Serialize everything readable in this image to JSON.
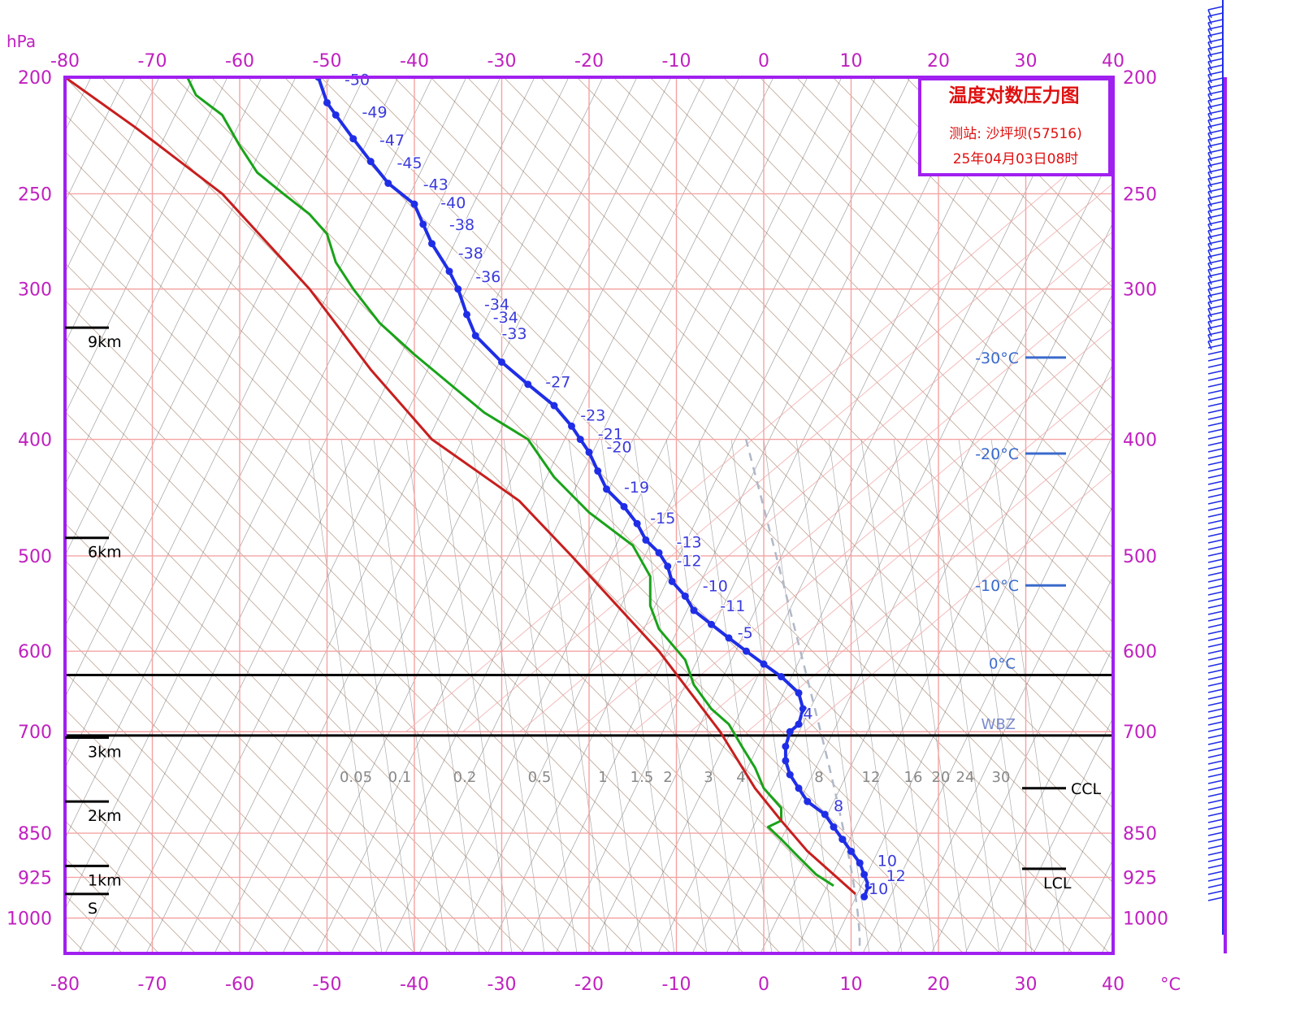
{
  "chart_data": {
    "type": "line",
    "title": "温度对数压力图",
    "station_line": "测站: 沙坪坝(57516)",
    "time_line": "25年04月03日08时",
    "pressure_unit": "hPa",
    "temp_unit": "°C",
    "pressure_levels": [
      200,
      250,
      300,
      400,
      500,
      600,
      700,
      850,
      925,
      1000
    ],
    "temp_ticks": [
      -80,
      -70,
      -60,
      -50,
      -40,
      -30,
      -20,
      -10,
      0,
      10,
      20,
      30,
      40
    ],
    "xlim": [
      -80,
      40
    ],
    "ylim": [
      1070,
      200
    ],
    "yscale": "log",
    "grid": true,
    "height_marks": [
      {
        "label": "9km",
        "p": 323
      },
      {
        "label": "6km",
        "p": 483
      },
      {
        "label": "3km",
        "p": 708
      },
      {
        "label": "2km",
        "p": 800
      },
      {
        "label": "1km",
        "p": 905
      },
      {
        "label": "S",
        "p": 955
      }
    ],
    "isotherm_markers": [
      {
        "label": "-30°C",
        "p": 342
      },
      {
        "label": "-20°C",
        "p": 411
      },
      {
        "label": "-10°C",
        "p": 529
      }
    ],
    "levels": [
      {
        "label": "0°C",
        "p": 628
      },
      {
        "label": "WBZ",
        "p": 705
      }
    ],
    "condensation_marks": [
      {
        "label": "CCL",
        "p": 780
      },
      {
        "label": "LCL",
        "p": 910
      }
    ],
    "mixing_ratio_labels": [
      "0.05",
      "0.1",
      "0.2",
      "0.5",
      "1",
      "1.5",
      "2",
      "3",
      "4",
      "8",
      "12",
      "16",
      "20",
      "24",
      "30"
    ],
    "series": [
      {
        "name": "temperature",
        "color": "#1f2ee6",
        "points": [
          [
            11.5,
            960
          ],
          [
            12,
            940
          ],
          [
            11.5,
            920
          ],
          [
            11,
            900
          ],
          [
            10,
            880
          ],
          [
            9,
            860
          ],
          [
            8,
            840
          ],
          [
            7,
            820
          ],
          [
            5,
            800
          ],
          [
            4,
            780
          ],
          [
            3,
            760
          ],
          [
            2.5,
            740
          ],
          [
            2.5,
            720
          ],
          [
            3,
            700
          ],
          [
            4,
            690
          ],
          [
            4.5,
            670
          ],
          [
            4,
            650
          ],
          [
            2,
            630
          ],
          [
            0,
            615
          ],
          [
            -2,
            600
          ],
          [
            -4,
            585
          ],
          [
            -6,
            570
          ],
          [
            -8,
            555
          ],
          [
            -9,
            540
          ],
          [
            -10.5,
            525
          ],
          [
            -11,
            510
          ],
          [
            -12,
            497
          ],
          [
            -13.5,
            485
          ],
          [
            -14.5,
            470
          ],
          [
            -16,
            455
          ],
          [
            -18,
            440
          ],
          [
            -19,
            425
          ],
          [
            -20,
            410
          ],
          [
            -21,
            400
          ],
          [
            -22,
            390
          ],
          [
            -24,
            375
          ],
          [
            -27,
            360
          ],
          [
            -30,
            345
          ],
          [
            -33,
            328
          ],
          [
            -34,
            315
          ],
          [
            -35,
            300
          ],
          [
            -36,
            290
          ],
          [
            -38,
            275
          ],
          [
            -39,
            265
          ],
          [
            -40,
            255
          ],
          [
            -43,
            245
          ],
          [
            -45,
            235
          ],
          [
            -47,
            225
          ],
          [
            -49,
            215
          ],
          [
            -50,
            210
          ],
          [
            -51,
            200
          ]
        ]
      },
      {
        "name": "dewpoint",
        "color": "#19a319",
        "points": [
          [
            8,
            940
          ],
          [
            6,
            920
          ],
          [
            4,
            890
          ],
          [
            2,
            860
          ],
          [
            0.5,
            840
          ],
          [
            2,
            830
          ],
          [
            2,
            810
          ],
          [
            0,
            780
          ],
          [
            -1,
            750
          ],
          [
            -2.5,
            720
          ],
          [
            -4,
            690
          ],
          [
            -6,
            670
          ],
          [
            -8,
            640
          ],
          [
            -9,
            610
          ],
          [
            -12,
            575
          ],
          [
            -13,
            550
          ],
          [
            -13,
            520
          ],
          [
            -15,
            490
          ],
          [
            -20,
            460
          ],
          [
            -24,
            430
          ],
          [
            -27,
            400
          ],
          [
            -32,
            380
          ],
          [
            -40,
            340
          ],
          [
            -44,
            320
          ],
          [
            -47,
            300
          ],
          [
            -49,
            285
          ],
          [
            -50,
            270
          ],
          [
            -52,
            260
          ],
          [
            -55,
            250
          ],
          [
            -58,
            240
          ],
          [
            -60,
            228
          ],
          [
            -62,
            215
          ],
          [
            -65,
            207
          ],
          [
            -66,
            200
          ]
        ]
      },
      {
        "name": "state_curve",
        "color": "#c81e1e",
        "points": [
          [
            10.5,
            955
          ],
          [
            8,
            920
          ],
          [
            5,
            880
          ],
          [
            2,
            830
          ],
          [
            -1,
            780
          ],
          [
            -5,
            700
          ],
          [
            -12,
            600
          ],
          [
            -22,
            500
          ],
          [
            -28,
            450
          ],
          [
            -38,
            400
          ],
          [
            -45,
            350
          ],
          [
            -52,
            300
          ],
          [
            -62,
            250
          ],
          [
            -72,
            220
          ],
          [
            -80,
            200
          ]
        ]
      }
    ],
    "temperature_labels": [
      {
        "text": "-50",
        "p": 203,
        "t": -48
      },
      {
        "text": "-49",
        "p": 216,
        "t": -46
      },
      {
        "text": "-47",
        "p": 228,
        "t": -44
      },
      {
        "text": "-45",
        "p": 238,
        "t": -42
      },
      {
        "text": "-43",
        "p": 248,
        "t": -39
      },
      {
        "text": "-40",
        "p": 257,
        "t": -37
      },
      {
        "text": "-38",
        "p": 268,
        "t": -36
      },
      {
        "text": "-38",
        "p": 283,
        "t": -35
      },
      {
        "text": "-36",
        "p": 296,
        "t": -33
      },
      {
        "text": "-34",
        "p": 312,
        "t": -32
      },
      {
        "text": "-34",
        "p": 320,
        "t": -31
      },
      {
        "text": "-33",
        "p": 330,
        "t": -30
      },
      {
        "text": "-27",
        "p": 362,
        "t": -25
      },
      {
        "text": "-23",
        "p": 386,
        "t": -21
      },
      {
        "text": "-21",
        "p": 400,
        "t": -19
      },
      {
        "text": "-20",
        "p": 410,
        "t": -18
      },
      {
        "text": "-19",
        "p": 443,
        "t": -16
      },
      {
        "text": "-15",
        "p": 470,
        "t": -13
      },
      {
        "text": "-13",
        "p": 492,
        "t": -10
      },
      {
        "text": "-12",
        "p": 510,
        "t": -10
      },
      {
        "text": "-10",
        "p": 535,
        "t": -7
      },
      {
        "text": "-11",
        "p": 556,
        "t": -5
      },
      {
        "text": "-5",
        "p": 585,
        "t": -3
      },
      {
        "text": "4",
        "p": 683,
        "t": 4.5
      },
      {
        "text": "8",
        "p": 815,
        "t": 8
      },
      {
        "text": "10",
        "p": 905,
        "t": 13
      },
      {
        "text": "12",
        "p": 932,
        "t": 14
      },
      {
        "text": "10",
        "p": 955,
        "t": 12
      }
    ]
  }
}
